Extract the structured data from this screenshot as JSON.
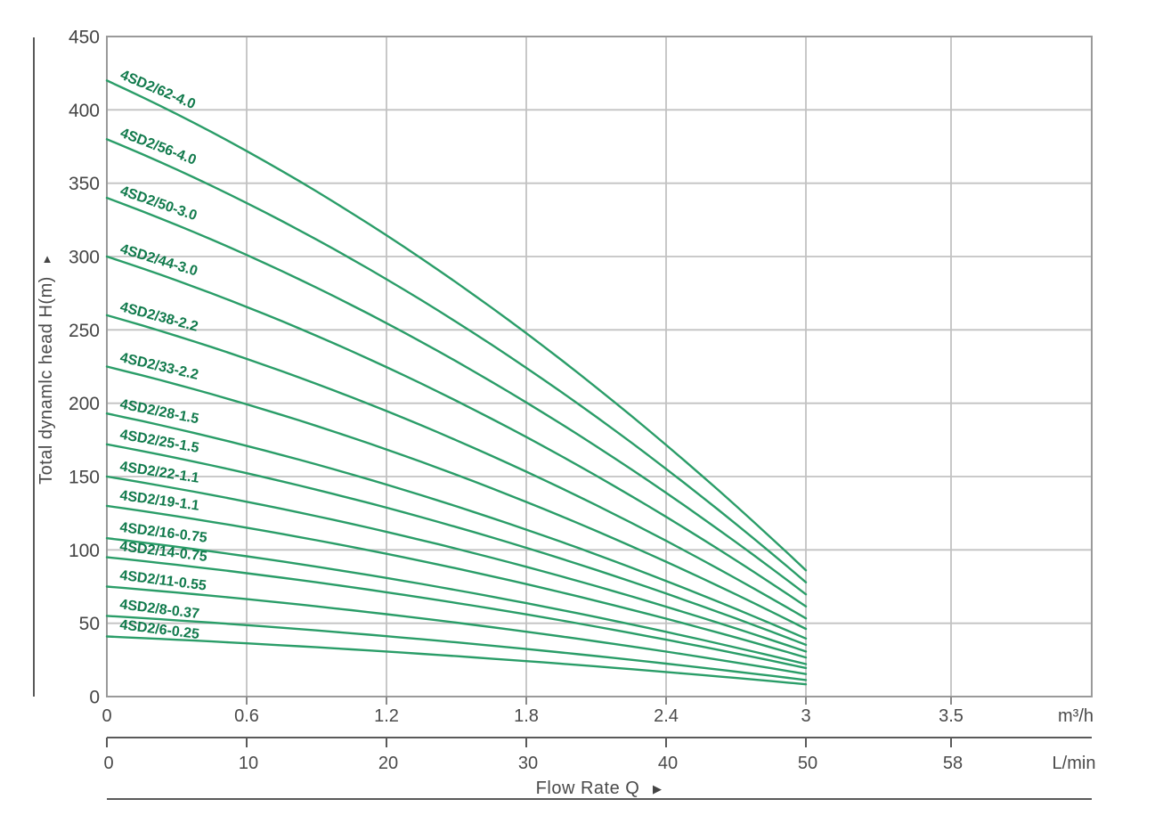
{
  "y_axis": {
    "title": "Total dynamlc head H(m)",
    "arrow": "▲",
    "ticks": [
      450,
      400,
      350,
      300,
      250,
      200,
      150,
      100,
      50,
      0
    ]
  },
  "x_axis_m3h": {
    "labels": [
      "0",
      "0.6",
      "1.2",
      "1.8",
      "2.4",
      "3",
      "3.5"
    ],
    "unit": "m³/h"
  },
  "x_axis_lmin": {
    "labels": [
      "0",
      "10",
      "20",
      "30",
      "40",
      "50",
      "58"
    ],
    "unit": "L/min"
  },
  "x_title": {
    "label": "Flow Rate Q",
    "arrow": "▶"
  },
  "colors": {
    "curve": "#2a9d68",
    "curve_label": "#117a4c",
    "grid": "#c2c2c2",
    "border": "#9a9a9a",
    "axis_rule": "#5a5a5a",
    "tick_mark": "#8a8a8a",
    "text": "#454545"
  },
  "chart_data": {
    "type": "line",
    "title": "",
    "xlabel": "Flow Rate Q",
    "ylabel": "Total dynamlc head H(m)",
    "x_units": [
      "m³/h",
      "L/min"
    ],
    "x_m3h": [
      0,
      0.6,
      1.2,
      1.8,
      2.4,
      3.0
    ],
    "x_lmin": [
      0,
      10,
      20,
      30,
      40,
      50
    ],
    "xlim_m3h": [
      0,
      3.5
    ],
    "ylim": [
      0,
      450
    ],
    "grid": true,
    "legend_position": "on-curve-labels",
    "model": {
      "droop": 0.795,
      "linear_weight": 0.65,
      "quad_weight": 0.35,
      "q_max": 3
    },
    "series": [
      {
        "name": "4SD2/62-4.0",
        "h0": 420,
        "values": [
          420,
          372,
          315,
          248,
          172,
          86
        ]
      },
      {
        "name": "4SD2/56-4.0",
        "h0": 380,
        "values": [
          380,
          337,
          285,
          224,
          155,
          78
        ]
      },
      {
        "name": "4SD2/50-3.0",
        "h0": 340,
        "values": [
          340,
          301,
          255,
          201,
          139,
          70
        ]
      },
      {
        "name": "4SD2/44-3.0",
        "h0": 300,
        "values": [
          300,
          266,
          225,
          177,
          123,
          62
        ]
      },
      {
        "name": "4SD2/38-2.2",
        "h0": 260,
        "values": [
          260,
          230,
          195,
          153,
          106,
          53
        ]
      },
      {
        "name": "4SD2/33-2.2",
        "h0": 225,
        "values": [
          225,
          199,
          168,
          133,
          92,
          46
        ]
      },
      {
        "name": "4SD2/28-1.5",
        "h0": 193,
        "values": [
          193,
          171,
          145,
          114,
          79,
          40
        ]
      },
      {
        "name": "4SD2/25-1.5",
        "h0": 172,
        "values": [
          172,
          152,
          129,
          101,
          70,
          35
        ]
      },
      {
        "name": "4SD2/22-1.1",
        "h0": 150,
        "values": [
          150,
          133,
          112,
          88,
          61,
          31
        ]
      },
      {
        "name": "4SD2/19-1.1",
        "h0": 130,
        "values": [
          130,
          115,
          97,
          77,
          53,
          27
        ]
      },
      {
        "name": "4SD2/16-0.75",
        "h0": 108,
        "values": [
          108,
          96,
          81,
          64,
          44,
          22
        ]
      },
      {
        "name": "4SD2/14-0.75",
        "h0": 95,
        "values": [
          95,
          84,
          71,
          56,
          39,
          19
        ]
      },
      {
        "name": "4SD2/11-0.55",
        "h0": 75,
        "values": [
          75,
          66,
          56,
          44,
          31,
          15
        ]
      },
      {
        "name": "4SD2/8-0.37",
        "h0": 55,
        "values": [
          55,
          49,
          41,
          32,
          22,
          11
        ]
      },
      {
        "name": "4SD2/6-0.25",
        "h0": 41,
        "values": [
          41,
          36,
          31,
          24,
          17,
          8
        ]
      }
    ]
  }
}
